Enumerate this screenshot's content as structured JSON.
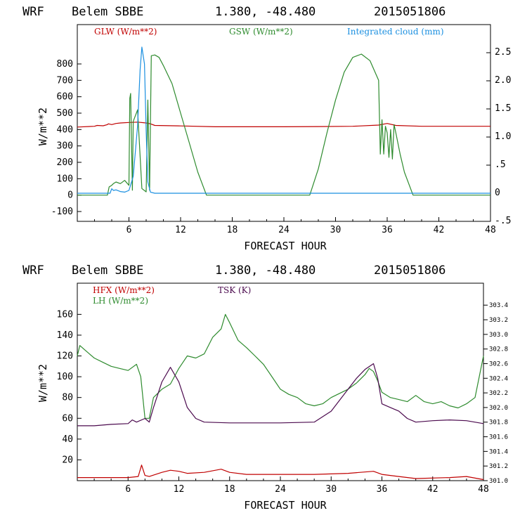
{
  "colors": {
    "red": "#c00000",
    "green": "#2e8b2e",
    "blue": "#1a8fe0",
    "purple": "#4b0a4e",
    "black": "#000000"
  },
  "chart_data": [
    {
      "type": "line",
      "header": {
        "model": "WRF",
        "station": "Belem SBBE",
        "coords": "1.380, -48.480",
        "date": "2015051806"
      },
      "xlabel": "FORECAST HOUR",
      "ylabel": "W/m**2",
      "xlim": [
        0,
        48
      ],
      "ylim": [
        -160,
        1040
      ],
      "y2lim": [
        -0.5,
        3.0
      ],
      "xticks": [
        "6",
        "12",
        "18",
        "24",
        "30",
        "36",
        "42",
        "48"
      ],
      "yticks": [
        "-100",
        "0",
        "100",
        "200",
        "300",
        "400",
        "500",
        "600",
        "700",
        "800"
      ],
      "y2ticks": [
        "-.5",
        "0",
        ".5",
        "1.0",
        "1.5",
        "2.0",
        "2.5"
      ],
      "series": [
        {
          "name": "GLW (W/m**2)",
          "color": "red",
          "axis": "left",
          "x": [
            0,
            2,
            2.3,
            3,
            3.5,
            3.6,
            4,
            4.5,
            5,
            6,
            7,
            8,
            8.5,
            9,
            12,
            16,
            20,
            24,
            28,
            32,
            35,
            36,
            37,
            40,
            48
          ],
          "y": [
            415,
            420,
            425,
            423,
            430,
            435,
            430,
            437,
            440,
            443,
            445,
            440,
            435,
            425,
            422,
            417,
            417,
            417,
            418,
            420,
            427,
            437,
            425,
            420,
            420
          ]
        },
        {
          "name": "GSW (W/m**2)",
          "color": "green",
          "axis": "left",
          "x": [
            0,
            3.5,
            3.7,
            4,
            4.2,
            4.5,
            5,
            5.5,
            6,
            6.1,
            6.2,
            6.4,
            6.5,
            7,
            7.5,
            8,
            8.2,
            8.4,
            8.6,
            9,
            9.5,
            10,
            11,
            12,
            13,
            14,
            15,
            27,
            28,
            29,
            30,
            31,
            32,
            33,
            34,
            35,
            35.2,
            35.4,
            35.6,
            35.8,
            36,
            36.2,
            36.4,
            36.6,
            36.8,
            37,
            37.5,
            38,
            39,
            48
          ],
          "y": [
            0,
            0,
            50,
            60,
            70,
            80,
            70,
            90,
            60,
            590,
            620,
            30,
            450,
            520,
            40,
            20,
            580,
            30,
            850,
            855,
            840,
            790,
            680,
            500,
            320,
            140,
            0,
            0,
            160,
            380,
            580,
            750,
            840,
            860,
            820,
            700,
            250,
            460,
            250,
            420,
            380,
            230,
            400,
            220,
            430,
            380,
            250,
            140,
            0,
            0
          ]
        },
        {
          "name": "Integrated cloud (mm)",
          "color": "blue",
          "axis": "right",
          "x": [
            0,
            3.8,
            4,
            4.2,
            4.5,
            5,
            5.5,
            6,
            6.5,
            7,
            7.3,
            7.5,
            7.8,
            8,
            8.2,
            8.5,
            9,
            48
          ],
          "y": [
            0,
            0,
            0.08,
            0.05,
            0.06,
            0.03,
            0.02,
            0.05,
            0.3,
            1.2,
            2.2,
            2.6,
            2.3,
            1.1,
            0.2,
            0.02,
            0,
            0
          ]
        }
      ]
    },
    {
      "type": "line",
      "header": {
        "model": "WRF",
        "station": "Belem SBBE",
        "coords": "1.380, -48.480",
        "date": "2015051806"
      },
      "xlabel": "FORECAST HOUR",
      "ylabel": "W/m**2",
      "xlim": [
        0,
        48
      ],
      "ylim": [
        0,
        190
      ],
      "y2lim": [
        301.0,
        303.7
      ],
      "xticks": [
        "6",
        "12",
        "18",
        "24",
        "30",
        "36",
        "42",
        "48"
      ],
      "yticks": [
        "20",
        "40",
        "60",
        "80",
        "100",
        "120",
        "140",
        "160"
      ],
      "y2ticks": [
        "301.0",
        "301.2",
        "301.4",
        "301.6",
        "301.8",
        "302.0",
        "302.2",
        "302.4",
        "302.6",
        "302.8",
        "303.0",
        "303.2",
        "303.4"
      ],
      "series": [
        {
          "name": "HFX (W/m**2)",
          "color": "red",
          "axis": "left",
          "x": [
            0,
            3,
            6,
            7.2,
            7.6,
            8,
            8.5,
            10,
            11,
            12,
            13,
            15,
            17,
            18,
            20,
            24,
            28,
            32,
            35,
            36,
            38,
            40,
            44,
            46,
            48
          ],
          "y": [
            3,
            3,
            3,
            4,
            15,
            5,
            4,
            8,
            10,
            9,
            7,
            8,
            11,
            8,
            6,
            6,
            6,
            7,
            9,
            6,
            4,
            2,
            3,
            4,
            1
          ]
        },
        {
          "name": "LH (W/m**2)",
          "color": "green",
          "axis": "left",
          "x": [
            0,
            0.3,
            1,
            2,
            3,
            4,
            5,
            6,
            7,
            7.5,
            8,
            8.5,
            9,
            10,
            11,
            12,
            13,
            14,
            15,
            16,
            17,
            17.5,
            18,
            19,
            20,
            21,
            22,
            23,
            24,
            25,
            26,
            27,
            28,
            29,
            30,
            31,
            32,
            33,
            34,
            34.5,
            35,
            35.5,
            36,
            37,
            38,
            39,
            40,
            41,
            42,
            43,
            44,
            45,
            46,
            47,
            48
          ],
          "y": [
            120,
            130,
            125,
            118,
            114,
            110,
            108,
            106,
            112,
            100,
            60,
            60,
            80,
            88,
            93,
            108,
            120,
            118,
            122,
            138,
            146,
            160,
            152,
            135,
            128,
            120,
            112,
            100,
            88,
            83,
            80,
            74,
            72,
            74,
            80,
            84,
            88,
            94,
            102,
            108,
            105,
            96,
            85,
            80,
            78,
            76,
            82,
            76,
            74,
            76,
            72,
            70,
            74,
            80,
            120
          ]
        },
        {
          "name": "TSK (K)",
          "color": "purple",
          "axis": "right",
          "x": [
            0,
            2,
            4,
            6,
            6.5,
            7,
            8,
            8.5,
            9,
            10,
            11,
            12,
            13,
            14,
            15,
            18,
            24,
            28,
            30,
            31,
            32,
            33,
            34,
            35,
            35.5,
            36,
            37,
            38,
            39,
            40,
            42,
            44,
            46,
            48
          ],
          "y": [
            301.75,
            301.75,
            301.77,
            301.78,
            301.83,
            301.8,
            301.85,
            301.8,
            302.0,
            302.35,
            302.55,
            302.35,
            302.0,
            301.85,
            301.8,
            301.79,
            301.79,
            301.8,
            301.95,
            302.1,
            302.25,
            302.4,
            302.52,
            302.6,
            302.4,
            302.05,
            302.0,
            301.95,
            301.85,
            301.8,
            301.82,
            301.83,
            301.82,
            301.78
          ]
        }
      ]
    }
  ]
}
